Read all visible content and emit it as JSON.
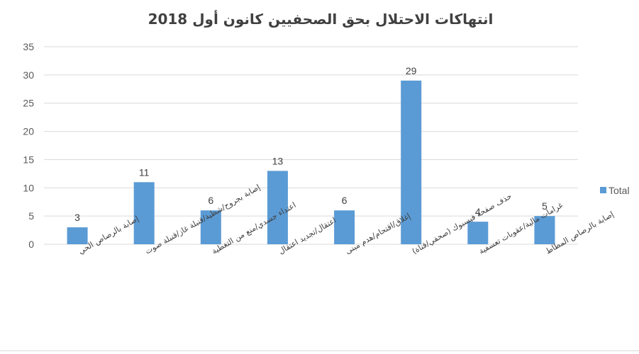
{
  "chart_data": {
    "type": "bar",
    "title": "انتهاكات الاحتلال بحق الصحفيين كانون أول 2018",
    "categories": [
      "إصابة بالرصاص الحي",
      "إصابة بجروح/شظية/قنبلة غاز/قنبلة صوت",
      "اعتداء جسدي/منع من التغطية",
      "اعتقال/تجديد اعتقال",
      "إغلاق/اقتحام/هدم مبنى",
      "حذف صفحة فيسبوك (صحفي/قناة)",
      "غرامات مالية/عقوبات تعسفية",
      "إصابة بالرصاص المطاط"
    ],
    "series": [
      {
        "name": "Total",
        "values": [
          3,
          11,
          6,
          13,
          6,
          29,
          4,
          5
        ],
        "color": "#5b9bd5"
      }
    ],
    "xlabel": "",
    "ylabel": "",
    "ylim": [
      0,
      35
    ],
    "yticks": [
      0,
      5,
      10,
      15,
      20,
      25,
      30,
      35
    ],
    "grid": true,
    "legend_position": "right",
    "data_labels": true
  },
  "legend": {
    "label": "Total"
  }
}
